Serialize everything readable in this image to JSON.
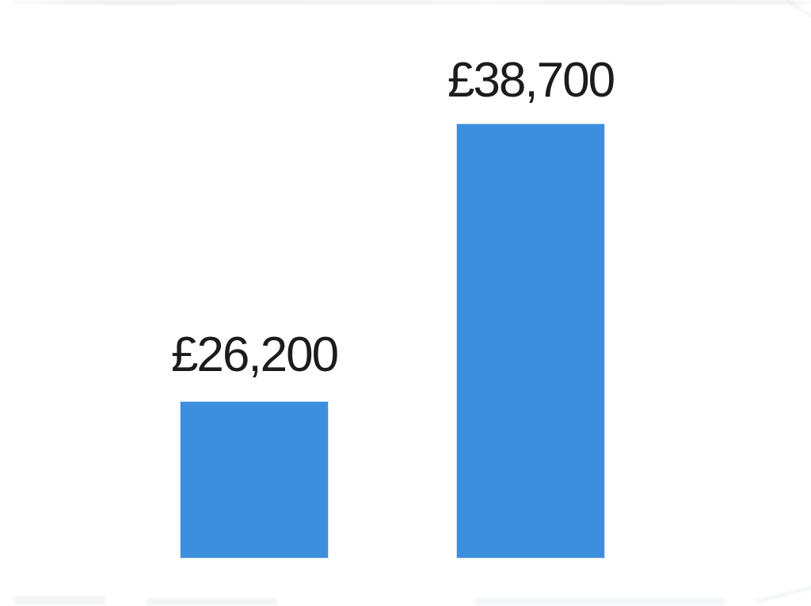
{
  "chart_data": {
    "type": "bar",
    "values": [
      26200,
      38700
    ],
    "data_labels": [
      "£26,200",
      "£38,700"
    ],
    "categories": [
      "",
      ""
    ],
    "currency_symbol": "£",
    "axes_visible": false,
    "grid": false,
    "legend": false,
    "bars_drawn_to_scale": false,
    "bar_color": "#3E8EDE",
    "bar_edge_color": "#CFE2F6",
    "label_color": "#1C1C1E",
    "background_color": "#FFFFFF"
  }
}
